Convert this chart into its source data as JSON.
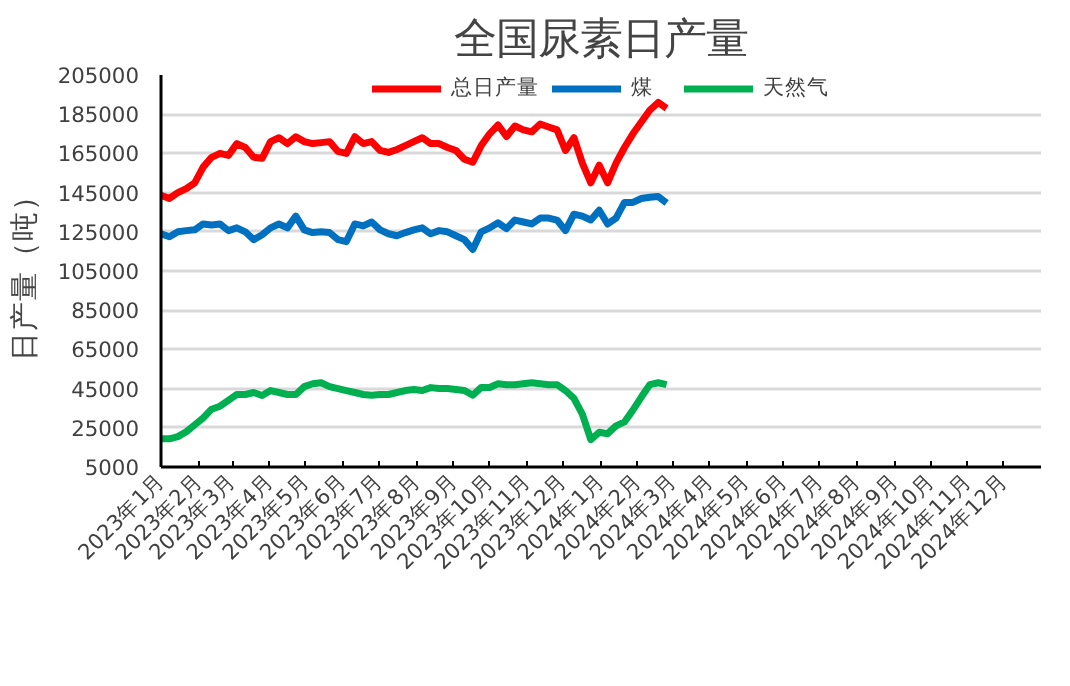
{
  "chart_data": {
    "type": "line",
    "title": "全国尿素日产量",
    "ylabel": "日产量（吨）",
    "x": [
      "2023-01-01",
      "2023-01-08",
      "2023-01-15",
      "2023-01-22",
      "2023-01-29",
      "2023-02-05",
      "2023-02-12",
      "2023-02-19",
      "2023-02-26",
      "2023-03-05",
      "2023-03-12",
      "2023-03-19",
      "2023-03-26",
      "2023-04-02",
      "2023-04-09",
      "2023-04-16",
      "2023-04-23",
      "2023-04-30",
      "2023-05-07",
      "2023-05-14",
      "2023-05-21",
      "2023-05-28",
      "2023-06-04",
      "2023-06-11",
      "2023-06-18",
      "2023-06-25",
      "2023-07-02",
      "2023-07-09",
      "2023-07-16",
      "2023-07-23",
      "2023-07-30",
      "2023-08-06",
      "2023-08-13",
      "2023-08-20",
      "2023-08-27",
      "2023-09-03",
      "2023-09-10",
      "2023-09-17",
      "2023-09-24",
      "2023-10-01",
      "2023-10-08",
      "2023-10-15",
      "2023-10-22",
      "2023-10-29",
      "2023-11-05",
      "2023-11-12",
      "2023-11-19",
      "2023-11-26",
      "2023-12-03",
      "2023-12-10",
      "2023-12-17",
      "2023-12-24",
      "2023-12-31",
      "2024-01-07",
      "2024-01-14",
      "2024-01-21",
      "2024-01-28",
      "2024-02-04",
      "2024-02-11",
      "2024-02-18",
      "2024-02-25"
    ],
    "series": [
      {
        "name": "总日产量",
        "color": "#ff0000",
        "values": [
          143600,
          142000,
          145000,
          147000,
          150000,
          158000,
          163000,
          165000,
          164000,
          170000,
          168000,
          163000,
          162500,
          171000,
          173000,
          170000,
          173500,
          171000,
          170000,
          170500,
          171000,
          166000,
          165000,
          173500,
          170000,
          171000,
          166500,
          165500,
          167000,
          169000,
          171000,
          173000,
          170000,
          170000,
          168000,
          166500,
          162000,
          160500,
          169000,
          175000,
          179500,
          173600,
          179000,
          177000,
          176000,
          180000,
          178500,
          177000,
          166500,
          173000,
          160000,
          150000,
          159000,
          150000,
          160000,
          168000,
          175000,
          181000,
          187000,
          191000,
          188000
        ]
      },
      {
        "name": "煤",
        "color": "#0070c0",
        "values": [
          124000,
          122500,
          125000,
          125600,
          126000,
          129000,
          128500,
          129000,
          125600,
          127000,
          125000,
          121000,
          123500,
          127000,
          129000,
          127000,
          133000,
          126000,
          124600,
          125000,
          124600,
          121000,
          120000,
          129000,
          128000,
          130000,
          126000,
          124000,
          123000,
          124600,
          126000,
          127000,
          124000,
          125600,
          125000,
          123000,
          121000,
          116000,
          125000,
          127000,
          129600,
          126600,
          131000,
          130000,
          129000,
          132000,
          132000,
          131000,
          125600,
          134000,
          133000,
          131000,
          136000,
          129000,
          132000,
          140000,
          140000,
          142000,
          142600,
          143000,
          139700
        ]
      },
      {
        "name": "天然气",
        "color": "#00b050",
        "values": [
          19400,
          19400,
          20500,
          23000,
          26500,
          30000,
          34500,
          36000,
          39000,
          42000,
          42000,
          43000,
          41500,
          44000,
          43000,
          42000,
          42000,
          46000,
          47500,
          48000,
          46000,
          45000,
          44000,
          43000,
          42000,
          41600,
          42000,
          42000,
          43000,
          44000,
          44500,
          44000,
          45500,
          45000,
          45000,
          44500,
          44000,
          41600,
          45600,
          45600,
          47500,
          47000,
          47000,
          47500,
          48000,
          47500,
          47000,
          47000,
          44000,
          40000,
          32000,
          19000,
          22700,
          22000,
          26000,
          28000,
          34000,
          40700,
          47000,
          48000,
          47000
        ]
      }
    ],
    "xlim": [
      "2023-01-01",
      "2025-01-01"
    ],
    "xticks": [
      {
        "value": "2023-01-01",
        "label": "2023年1月"
      },
      {
        "value": "2023-02-01",
        "label": "2023年2月"
      },
      {
        "value": "2023-03-01",
        "label": "2023年3月"
      },
      {
        "value": "2023-04-01",
        "label": "2023年4月"
      },
      {
        "value": "2023-05-01",
        "label": "2023年5月"
      },
      {
        "value": "2023-06-01",
        "label": "2023年6月"
      },
      {
        "value": "2023-07-01",
        "label": "2023年7月"
      },
      {
        "value": "2023-08-01",
        "label": "2023年8月"
      },
      {
        "value": "2023-09-01",
        "label": "2023年9月"
      },
      {
        "value": "2023-10-01",
        "label": "2023年10月"
      },
      {
        "value": "2023-11-01",
        "label": "2023年11月"
      },
      {
        "value": "2023-12-01",
        "label": "2023年12月"
      },
      {
        "value": "2024-01-01",
        "label": "2024年1月"
      },
      {
        "value": "2024-02-01",
        "label": "2024年2月"
      },
      {
        "value": "2024-03-01",
        "label": "2024年3月"
      },
      {
        "value": "2024-04-01",
        "label": "2024年4月"
      },
      {
        "value": "2024-05-01",
        "label": "2024年5月"
      },
      {
        "value": "2024-06-01",
        "label": "2024年6月"
      },
      {
        "value": "2024-07-01",
        "label": "2024年7月"
      },
      {
        "value": "2024-08-01",
        "label": "2024年8月"
      },
      {
        "value": "2024-09-01",
        "label": "2024年9月"
      },
      {
        "value": "2024-10-01",
        "label": "2024年10月"
      },
      {
        "value": "2024-11-01",
        "label": "2024年11月"
      },
      {
        "value": "2024-12-01",
        "label": "2024年12月"
      }
    ],
    "ylim": [
      5000,
      205000
    ],
    "yticks": [
      5000,
      25000,
      45000,
      65000,
      85000,
      105000,
      125000,
      145000,
      165000,
      185000,
      205000
    ],
    "grid": "y",
    "legend": "top",
    "marker": "none",
    "line_style": "solid"
  }
}
